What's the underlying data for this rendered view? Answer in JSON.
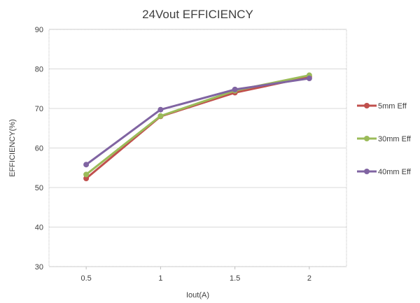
{
  "chart_data": {
    "type": "line",
    "title": "24Vout EFFICIENCY",
    "xlabel": "Iout(A)",
    "ylabel": "EFFICIENCY(%)",
    "categories": [
      "0.5",
      "1",
      "1.5",
      "2"
    ],
    "ylim": [
      30,
      90
    ],
    "yticks": [
      "30",
      "40",
      "50",
      "60",
      "70",
      "80",
      "90"
    ],
    "grid": true,
    "legend_position": "right",
    "series": [
      {
        "name": "5mm Eff",
        "color": "#c0504d",
        "values": [
          52.3,
          68.0,
          74.0,
          78.0
        ]
      },
      {
        "name": "30mm Eff",
        "color": "#9bbb59",
        "values": [
          53.3,
          68.1,
          74.5,
          78.4
        ]
      },
      {
        "name": "40mm Eff",
        "color": "#8064a2",
        "values": [
          55.8,
          69.7,
          74.8,
          77.6
        ]
      }
    ]
  }
}
